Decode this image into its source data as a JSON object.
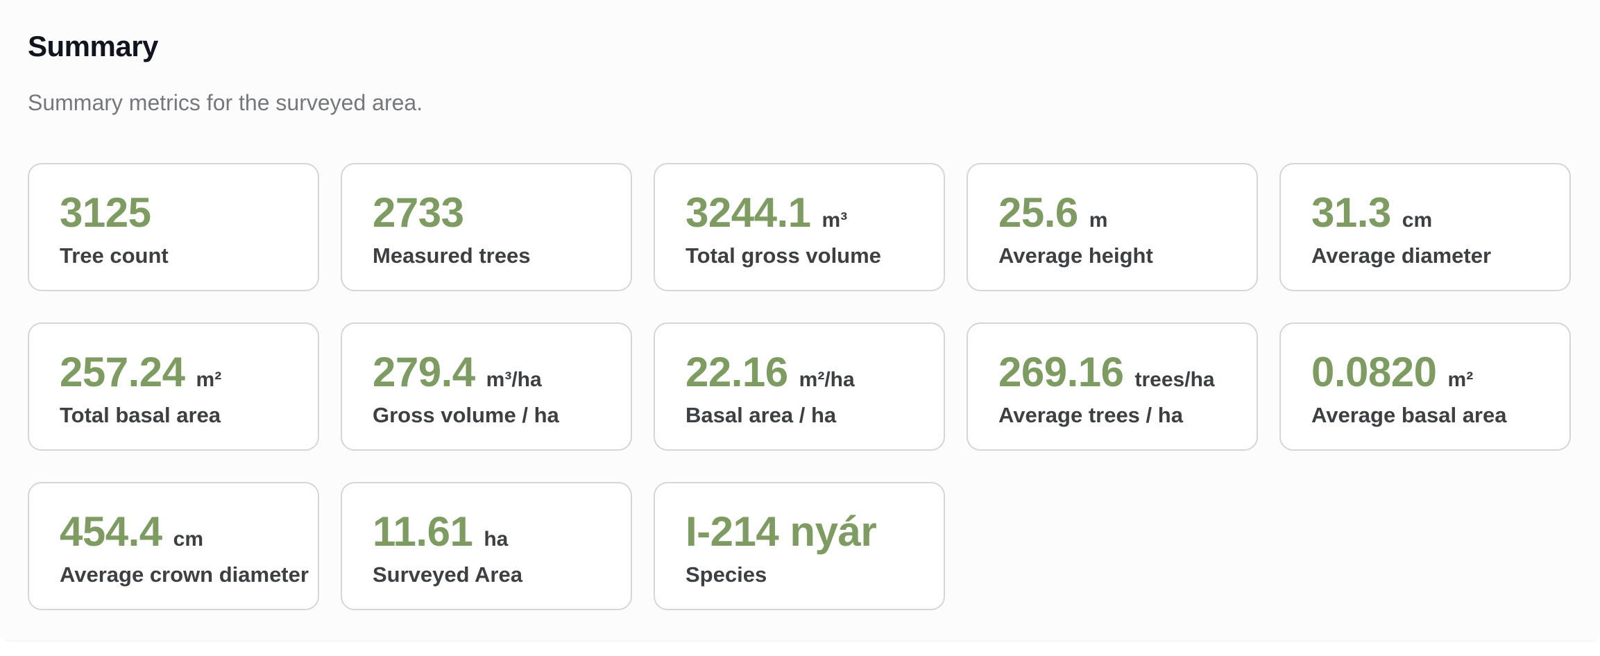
{
  "page": {
    "title": "Summary",
    "subtitle": "Summary metrics for the surveyed area."
  },
  "colors": {
    "value_accent_green": "#7e9c62",
    "label_dark_gray": "#3c4043",
    "title_dark": "#10141f",
    "subtitle_gray": "#74787d",
    "card_border": "#d6d6d6",
    "background": "#ffffff"
  },
  "cards": [
    {
      "value": "3125",
      "unit": "",
      "label": "Tree count"
    },
    {
      "value": "2733",
      "unit": "",
      "label": "Measured trees"
    },
    {
      "value": "3244.1",
      "unit": "m³",
      "label": "Total gross volume"
    },
    {
      "value": "25.6",
      "unit": "m",
      "label": "Average height"
    },
    {
      "value": "31.3",
      "unit": "cm",
      "label": "Average diameter"
    },
    {
      "value": "257.24",
      "unit": "m²",
      "label": "Total basal area"
    },
    {
      "value": "279.4",
      "unit": "m³/ha",
      "label": "Gross volume / ha"
    },
    {
      "value": "22.16",
      "unit": "m²/ha",
      "label": "Basal area / ha"
    },
    {
      "value": "269.16",
      "unit": "trees/ha",
      "label": "Average trees / ha"
    },
    {
      "value": "0.0820",
      "unit": "m²",
      "label": "Average basal area"
    },
    {
      "value": "454.4",
      "unit": "cm",
      "label": "Average crown diameter"
    },
    {
      "value": "11.61",
      "unit": "ha",
      "label": "Surveyed Area"
    },
    {
      "value": "I-214 nyár",
      "unit": "",
      "label": "Species"
    }
  ]
}
